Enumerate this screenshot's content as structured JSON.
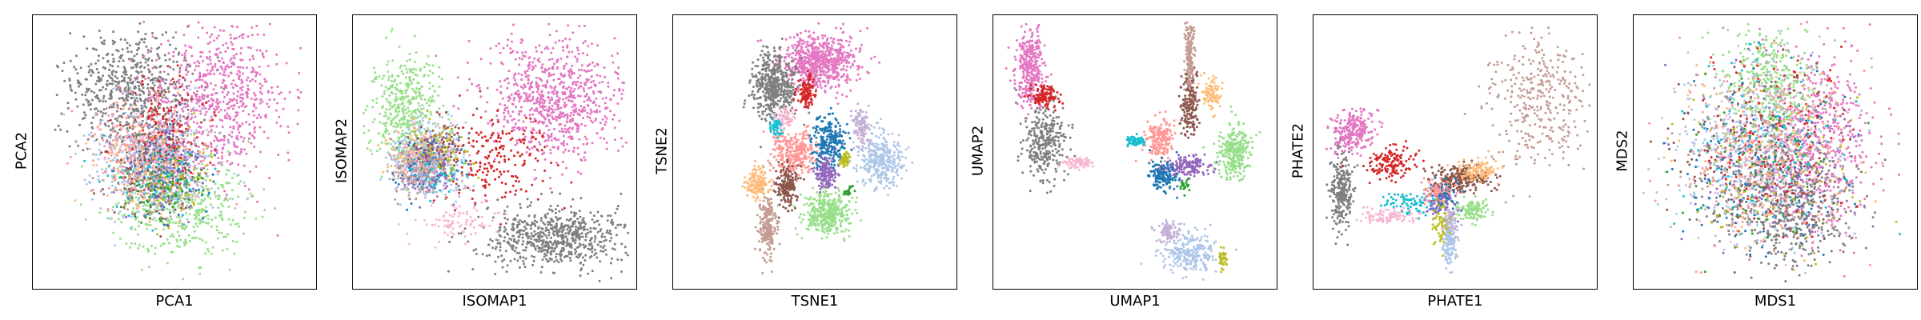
{
  "chart_data": [
    {
      "type": "scatter",
      "xlabel": "PCA1",
      "ylabel": "PCA2",
      "grid": false,
      "ticks": false,
      "clusters": [
        {
          "color": "#7f7f7f",
          "x": 0.35,
          "y": 0.28,
          "sx": 0.11,
          "sy": 0.12,
          "n": 700
        },
        {
          "color": "#e377c2",
          "x": 0.66,
          "y": 0.3,
          "sx": 0.13,
          "sy": 0.15,
          "n": 700
        },
        {
          "color": "#98df8a",
          "x": 0.52,
          "y": 0.72,
          "sx": 0.12,
          "sy": 0.09,
          "n": 420
        },
        {
          "color": "#aec7e8",
          "x": 0.42,
          "y": 0.55,
          "sx": 0.12,
          "sy": 0.11,
          "n": 400
        },
        {
          "color": "#ff9896",
          "x": 0.4,
          "y": 0.5,
          "sx": 0.09,
          "sy": 0.09,
          "n": 280
        },
        {
          "color": "#d62728",
          "x": 0.47,
          "y": 0.42,
          "sx": 0.08,
          "sy": 0.1,
          "n": 160
        },
        {
          "color": "#1f77b4",
          "x": 0.45,
          "y": 0.57,
          "sx": 0.08,
          "sy": 0.08,
          "n": 150
        },
        {
          "color": "#ffbb78",
          "x": 0.38,
          "y": 0.55,
          "sx": 0.08,
          "sy": 0.08,
          "n": 120
        },
        {
          "color": "#8c564b",
          "x": 0.42,
          "y": 0.58,
          "sx": 0.08,
          "sy": 0.08,
          "n": 110
        },
        {
          "color": "#9467bd",
          "x": 0.48,
          "y": 0.56,
          "sx": 0.08,
          "sy": 0.08,
          "n": 110
        },
        {
          "color": "#17becf",
          "x": 0.44,
          "y": 0.6,
          "sx": 0.08,
          "sy": 0.07,
          "n": 90
        },
        {
          "color": "#bcbd22",
          "x": 0.5,
          "y": 0.6,
          "sx": 0.07,
          "sy": 0.07,
          "n": 80
        },
        {
          "color": "#c49c94",
          "x": 0.4,
          "y": 0.62,
          "sx": 0.08,
          "sy": 0.07,
          "n": 90
        },
        {
          "color": "#c5b0d5",
          "x": 0.46,
          "y": 0.52,
          "sx": 0.08,
          "sy": 0.08,
          "n": 90
        },
        {
          "color": "#f7b6d2",
          "x": 0.39,
          "y": 0.47,
          "sx": 0.08,
          "sy": 0.08,
          "n": 80
        },
        {
          "color": "#2ca02c",
          "x": 0.47,
          "y": 0.63,
          "sx": 0.07,
          "sy": 0.07,
          "n": 60
        }
      ]
    },
    {
      "type": "scatter",
      "xlabel": "ISOMAP1",
      "ylabel": "ISOMAP2",
      "grid": false,
      "ticks": false,
      "clusters": [
        {
          "color": "#e377c2",
          "x": 0.72,
          "y": 0.3,
          "sx": 0.12,
          "sy": 0.11,
          "n": 800
        },
        {
          "color": "#7f7f7f",
          "x": 0.72,
          "y": 0.82,
          "sx": 0.12,
          "sy": 0.06,
          "n": 650
        },
        {
          "color": "#98df8a",
          "x": 0.17,
          "y": 0.35,
          "sx": 0.06,
          "sy": 0.1,
          "n": 450
        },
        {
          "color": "#aec7e8",
          "x": 0.26,
          "y": 0.52,
          "sx": 0.07,
          "sy": 0.07,
          "n": 400
        },
        {
          "color": "#d62728",
          "x": 0.52,
          "y": 0.52,
          "sx": 0.1,
          "sy": 0.09,
          "n": 200
        },
        {
          "color": "#ff9896",
          "x": 0.25,
          "y": 0.52,
          "sx": 0.05,
          "sy": 0.05,
          "n": 120
        },
        {
          "color": "#1f77b4",
          "x": 0.24,
          "y": 0.55,
          "sx": 0.05,
          "sy": 0.05,
          "n": 110
        },
        {
          "color": "#ffbb78",
          "x": 0.21,
          "y": 0.52,
          "sx": 0.05,
          "sy": 0.05,
          "n": 100
        },
        {
          "color": "#8c564b",
          "x": 0.3,
          "y": 0.48,
          "sx": 0.05,
          "sy": 0.05,
          "n": 90
        },
        {
          "color": "#9467bd",
          "x": 0.27,
          "y": 0.56,
          "sx": 0.05,
          "sy": 0.05,
          "n": 90
        },
        {
          "color": "#17becf",
          "x": 0.28,
          "y": 0.58,
          "sx": 0.05,
          "sy": 0.05,
          "n": 70
        },
        {
          "color": "#bcbd22",
          "x": 0.3,
          "y": 0.5,
          "sx": 0.05,
          "sy": 0.05,
          "n": 60
        },
        {
          "color": "#c49c94",
          "x": 0.22,
          "y": 0.58,
          "sx": 0.05,
          "sy": 0.05,
          "n": 80
        },
        {
          "color": "#c5b0d5",
          "x": 0.24,
          "y": 0.58,
          "sx": 0.05,
          "sy": 0.05,
          "n": 80
        },
        {
          "color": "#f7b6d2",
          "x": 0.38,
          "y": 0.77,
          "sx": 0.07,
          "sy": 0.04,
          "n": 90
        }
      ]
    },
    {
      "type": "scatter",
      "xlabel": "TSNE1",
      "ylabel": "TSNE2",
      "grid": false,
      "ticks": false,
      "clusters": [
        {
          "color": "#e377c2",
          "x": 0.52,
          "y": 0.16,
          "sx": 0.07,
          "sy": 0.05,
          "n": 700
        },
        {
          "color": "#7f7f7f",
          "x": 0.35,
          "y": 0.25,
          "sx": 0.04,
          "sy": 0.06,
          "n": 500
        },
        {
          "color": "#d62728",
          "x": 0.47,
          "y": 0.27,
          "sx": 0.015,
          "sy": 0.03,
          "n": 120
        },
        {
          "color": "#ff9896",
          "x": 0.43,
          "y": 0.5,
          "sx": 0.04,
          "sy": 0.04,
          "n": 300
        },
        {
          "color": "#1f77b4",
          "x": 0.55,
          "y": 0.47,
          "sx": 0.03,
          "sy": 0.05,
          "n": 260
        },
        {
          "color": "#aec7e8",
          "x": 0.74,
          "y": 0.53,
          "sx": 0.04,
          "sy": 0.05,
          "n": 350
        },
        {
          "color": "#98df8a",
          "x": 0.55,
          "y": 0.73,
          "sx": 0.04,
          "sy": 0.04,
          "n": 380
        },
        {
          "color": "#8c564b",
          "x": 0.4,
          "y": 0.63,
          "sx": 0.02,
          "sy": 0.04,
          "n": 180
        },
        {
          "color": "#c49c94",
          "x": 0.33,
          "y": 0.78,
          "sx": 0.015,
          "sy": 0.06,
          "n": 220
        },
        {
          "color": "#ffbb78",
          "x": 0.29,
          "y": 0.62,
          "sx": 0.02,
          "sy": 0.03,
          "n": 150
        },
        {
          "color": "#9467bd",
          "x": 0.54,
          "y": 0.58,
          "sx": 0.02,
          "sy": 0.03,
          "n": 140
        },
        {
          "color": "#c5b0d5",
          "x": 0.67,
          "y": 0.4,
          "sx": 0.015,
          "sy": 0.03,
          "n": 120
        },
        {
          "color": "#17becf",
          "x": 0.36,
          "y": 0.4,
          "sx": 0.01,
          "sy": 0.02,
          "n": 60
        },
        {
          "color": "#bcbd22",
          "x": 0.61,
          "y": 0.53,
          "sx": 0.01,
          "sy": 0.015,
          "n": 60
        },
        {
          "color": "#f7b6d2",
          "x": 0.39,
          "y": 0.37,
          "sx": 0.015,
          "sy": 0.02,
          "n": 60
        },
        {
          "color": "#2ca02c",
          "x": 0.62,
          "y": 0.65,
          "sx": 0.01,
          "sy": 0.01,
          "n": 20
        }
      ]
    },
    {
      "type": "scatter",
      "xlabel": "UMAP1",
      "ylabel": "UMAP2",
      "grid": false,
      "ticks": false,
      "clusters": [
        {
          "color": "#e377c2",
          "x": 0.12,
          "y": 0.18,
          "sx": 0.025,
          "sy": 0.07,
          "n": 350
        },
        {
          "color": "#7f7f7f",
          "x": 0.17,
          "y": 0.46,
          "sx": 0.04,
          "sy": 0.07,
          "n": 300
        },
        {
          "color": "#d62728",
          "x": 0.17,
          "y": 0.29,
          "sx": 0.025,
          "sy": 0.02,
          "n": 120
        },
        {
          "color": "#f7b6d2",
          "x": 0.3,
          "y": 0.54,
          "sx": 0.03,
          "sy": 0.01,
          "n": 80
        },
        {
          "color": "#8c564b",
          "x": 0.7,
          "y": 0.33,
          "sx": 0.015,
          "sy": 0.06,
          "n": 180
        },
        {
          "color": "#c49c94",
          "x": 0.7,
          "y": 0.12,
          "sx": 0.008,
          "sy": 0.07,
          "n": 180
        },
        {
          "color": "#ff9896",
          "x": 0.59,
          "y": 0.45,
          "sx": 0.025,
          "sy": 0.04,
          "n": 200
        },
        {
          "color": "#1f77b4",
          "x": 0.6,
          "y": 0.58,
          "sx": 0.025,
          "sy": 0.03,
          "n": 180
        },
        {
          "color": "#98df8a",
          "x": 0.86,
          "y": 0.5,
          "sx": 0.03,
          "sy": 0.05,
          "n": 300
        },
        {
          "color": "#9467bd",
          "x": 0.7,
          "y": 0.55,
          "sx": 0.04,
          "sy": 0.02,
          "n": 150
        },
        {
          "color": "#ffbb78",
          "x": 0.78,
          "y": 0.28,
          "sx": 0.02,
          "sy": 0.03,
          "n": 90
        },
        {
          "color": "#aec7e8",
          "x": 0.7,
          "y": 0.88,
          "sx": 0.05,
          "sy": 0.04,
          "n": 260
        },
        {
          "color": "#c5b0d5",
          "x": 0.62,
          "y": 0.8,
          "sx": 0.02,
          "sy": 0.02,
          "n": 90
        },
        {
          "color": "#17becf",
          "x": 0.5,
          "y": 0.46,
          "sx": 0.02,
          "sy": 0.01,
          "n": 60
        },
        {
          "color": "#bcbd22",
          "x": 0.82,
          "y": 0.9,
          "sx": 0.01,
          "sy": 0.02,
          "n": 40
        },
        {
          "color": "#2ca02c",
          "x": 0.68,
          "y": 0.63,
          "sx": 0.01,
          "sy": 0.01,
          "n": 20
        }
      ]
    },
    {
      "type": "scatter",
      "xlabel": "PHATE1",
      "ylabel": "PHATE2",
      "grid": false,
      "ticks": false,
      "clusters": [
        {
          "color": "#e377c2",
          "x": 0.13,
          "y": 0.42,
          "sx": 0.04,
          "sy": 0.04,
          "n": 250
        },
        {
          "color": "#7f7f7f",
          "x": 0.09,
          "y": 0.65,
          "sx": 0.02,
          "sy": 0.07,
          "n": 250
        },
        {
          "color": "#d62728",
          "x": 0.27,
          "y": 0.54,
          "sx": 0.05,
          "sy": 0.03,
          "n": 150
        },
        {
          "color": "#c49c94",
          "x": 0.8,
          "y": 0.3,
          "sx": 0.09,
          "sy": 0.12,
          "n": 350
        },
        {
          "color": "#8c564b",
          "x": 0.52,
          "y": 0.6,
          "sx": 0.05,
          "sy": 0.025,
          "n": 250
        },
        {
          "color": "#ffbb78",
          "x": 0.58,
          "y": 0.57,
          "sx": 0.04,
          "sy": 0.02,
          "n": 120
        },
        {
          "color": "#98df8a",
          "x": 0.56,
          "y": 0.72,
          "sx": 0.03,
          "sy": 0.02,
          "n": 120
        },
        {
          "color": "#aec7e8",
          "x": 0.48,
          "y": 0.84,
          "sx": 0.012,
          "sy": 0.05,
          "n": 150
        },
        {
          "color": "#f7b6d2",
          "x": 0.25,
          "y": 0.74,
          "sx": 0.06,
          "sy": 0.015,
          "n": 100
        },
        {
          "color": "#1f77b4",
          "x": 0.46,
          "y": 0.66,
          "sx": 0.03,
          "sy": 0.03,
          "n": 80
        },
        {
          "color": "#17becf",
          "x": 0.34,
          "y": 0.69,
          "sx": 0.05,
          "sy": 0.02,
          "n": 80
        },
        {
          "color": "#9467bd",
          "x": 0.45,
          "y": 0.7,
          "sx": 0.03,
          "sy": 0.03,
          "n": 60
        },
        {
          "color": "#bcbd22",
          "x": 0.45,
          "y": 0.78,
          "sx": 0.015,
          "sy": 0.04,
          "n": 60
        },
        {
          "color": "#ff9896",
          "x": 0.44,
          "y": 0.64,
          "sx": 0.03,
          "sy": 0.02,
          "n": 60
        },
        {
          "color": "#c5b0d5",
          "x": 0.49,
          "y": 0.76,
          "sx": 0.015,
          "sy": 0.03,
          "n": 40
        }
      ]
    },
    {
      "type": "scatter",
      "xlabel": "MDS1",
      "ylabel": "MDS2",
      "grid": false,
      "ticks": false,
      "clusters": [
        {
          "color": "#e377c2",
          "x": 0.64,
          "y": 0.45,
          "sx": 0.11,
          "sy": 0.17,
          "n": 600
        },
        {
          "color": "#7f7f7f",
          "x": 0.55,
          "y": 0.72,
          "sx": 0.12,
          "sy": 0.1,
          "n": 500
        },
        {
          "color": "#98df8a",
          "x": 0.47,
          "y": 0.25,
          "sx": 0.09,
          "sy": 0.11,
          "n": 400
        },
        {
          "color": "#aec7e8",
          "x": 0.38,
          "y": 0.5,
          "sx": 0.13,
          "sy": 0.16,
          "n": 400
        },
        {
          "color": "#ff9896",
          "x": 0.47,
          "y": 0.5,
          "sx": 0.15,
          "sy": 0.17,
          "n": 220
        },
        {
          "color": "#d62728",
          "x": 0.5,
          "y": 0.46,
          "sx": 0.15,
          "sy": 0.17,
          "n": 160
        },
        {
          "color": "#1f77b4",
          "x": 0.45,
          "y": 0.55,
          "sx": 0.15,
          "sy": 0.17,
          "n": 160
        },
        {
          "color": "#ffbb78",
          "x": 0.46,
          "y": 0.48,
          "sx": 0.15,
          "sy": 0.17,
          "n": 140
        },
        {
          "color": "#8c564b",
          "x": 0.44,
          "y": 0.52,
          "sx": 0.15,
          "sy": 0.17,
          "n": 140
        },
        {
          "color": "#9467bd",
          "x": 0.48,
          "y": 0.54,
          "sx": 0.15,
          "sy": 0.17,
          "n": 130
        },
        {
          "color": "#17becf",
          "x": 0.46,
          "y": 0.5,
          "sx": 0.15,
          "sy": 0.17,
          "n": 120
        },
        {
          "color": "#bcbd22",
          "x": 0.49,
          "y": 0.52,
          "sx": 0.15,
          "sy": 0.17,
          "n": 100
        },
        {
          "color": "#c49c94",
          "x": 0.45,
          "y": 0.48,
          "sx": 0.15,
          "sy": 0.17,
          "n": 120
        },
        {
          "color": "#c5b0d5",
          "x": 0.47,
          "y": 0.47,
          "sx": 0.15,
          "sy": 0.17,
          "n": 110
        },
        {
          "color": "#f7b6d2",
          "x": 0.46,
          "y": 0.53,
          "sx": 0.15,
          "sy": 0.17,
          "n": 110
        },
        {
          "color": "#2ca02c",
          "x": 0.47,
          "y": 0.55,
          "sx": 0.15,
          "sy": 0.17,
          "n": 60
        }
      ]
    }
  ]
}
